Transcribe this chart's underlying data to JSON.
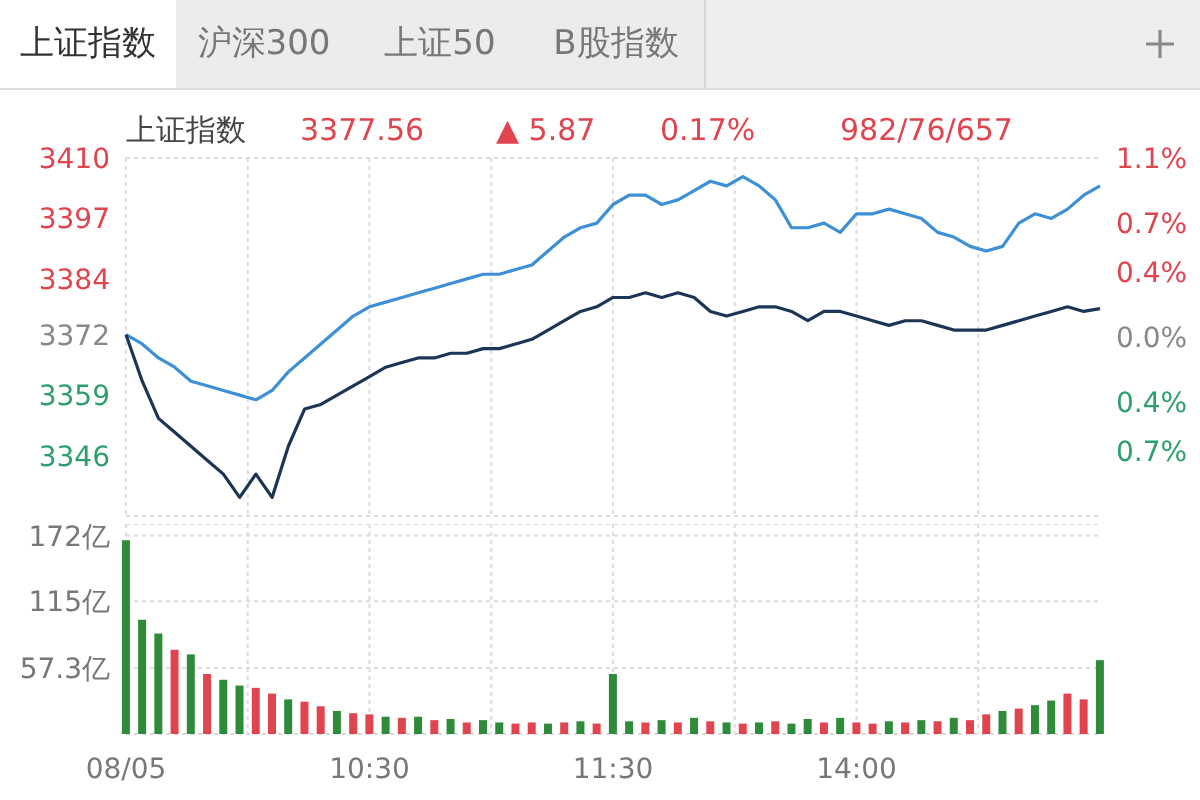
{
  "chart_data": [
    {
      "type": "line",
      "title": "上证指数",
      "annotations": [
        "沪深300",
        "上证50",
        "B股指数",
        "3377.56",
        "▲ 5.87",
        "0.17%",
        "982/76/657"
      ],
      "categories": [
        null,
        null,
        null,
        null,
        null,
        null,
        null,
        null,
        null,
        null,
        null,
        null,
        null,
        null,
        null,
        null,
        null,
        null,
        null,
        null,
        null,
        null,
        null,
        null,
        null,
        null,
        null,
        null,
        null,
        null,
        null,
        null,
        null,
        null,
        null,
        null,
        null,
        null,
        null,
        null,
        null,
        null,
        null,
        null,
        null,
        null,
        null,
        null,
        null,
        null,
        null,
        null,
        null,
        null,
        null,
        null,
        null,
        null,
        null,
        null,
        null
      ],
      "ylim": [
        3333,
        3410
      ],
      "yticks": [
        3346,
        3359,
        3372,
        3384,
        3397,
        3410
      ],
      "y2lim": [
        -1.1,
        1.1
      ],
      "y2ticks": [
        {
          "value": -0.7,
          "label": "0.7%"
        },
        {
          "value": -0.4,
          "label": "0.4%"
        },
        {
          "value": 0,
          "label": "0.0%"
        },
        {
          "value": 0.4,
          "label": "0.4%"
        },
        {
          "value": 0.7,
          "label": "0.7%"
        },
        {
          "value": 1.1,
          "label": "1.1%"
        }
      ],
      "tick_labels": "y",
      "grid": true,
      "series": [
        {
          "color": "#3d8fd6",
          "values": [
            3372,
            3370,
            3367,
            3365,
            3362,
            3361,
            3360,
            3359,
            3358,
            3360,
            3364,
            3367,
            3370,
            3373,
            3376,
            3378,
            3379,
            3380,
            3381,
            3382,
            3383,
            3384,
            3385,
            3385,
            3386,
            3387,
            3390,
            3393,
            3395,
            3396,
            3400,
            3402,
            3402,
            3400,
            3401,
            3403,
            3405,
            3404,
            3406,
            3404,
            3401,
            3395,
            3395,
            3396,
            3394,
            3398,
            3398,
            3399,
            3398,
            3397,
            3394,
            3393,
            3391,
            3390,
            3391,
            3396,
            3398,
            3397,
            3399,
            3402,
            3404
          ]
        },
        {
          "color": "#1c3557",
          "values": [
            3372,
            3362,
            3354,
            3351,
            3348,
            3345,
            3342,
            3337,
            3342,
            3337,
            3348,
            3356,
            3357,
            3359,
            3361,
            3363,
            3365,
            3366,
            3367,
            3367,
            3368,
            3368,
            3369,
            3369,
            3370,
            3371,
            3373,
            3375,
            3377,
            3378,
            3380,
            3380,
            3381,
            3380,
            3381,
            3380,
            3377,
            3376,
            3377,
            3378,
            3378,
            3377,
            3375,
            3377,
            3377,
            3376,
            3375,
            3374,
            3375,
            3375,
            3374,
            3373,
            3373,
            3373,
            3374,
            3375,
            3376,
            3377,
            3378,
            3377,
            3377.6
          ]
        }
      ]
    },
    {
      "type": "bar",
      "categories": [
        "08/05",
        null,
        null,
        null,
        null,
        null,
        null,
        null,
        null,
        null,
        null,
        null,
        null,
        null,
        null,
        "10:30",
        null,
        null,
        null,
        null,
        null,
        null,
        null,
        null,
        null,
        null,
        null,
        null,
        null,
        null,
        "11:30",
        null,
        null,
        null,
        null,
        null,
        null,
        null,
        null,
        null,
        null,
        null,
        null,
        null,
        null,
        "14:00",
        null,
        null,
        null,
        null,
        null,
        null,
        null,
        null,
        null,
        null,
        null,
        null,
        null,
        null,
        null
      ],
      "ylim": [
        0,
        182
      ],
      "yticks": [
        {
          "value": 57.3,
          "label": "57.3亿"
        },
        {
          "value": 115,
          "label": "115亿"
        },
        {
          "value": 172,
          "label": "172亿"
        }
      ],
      "grid": true,
      "values": [
        168,
        99,
        87,
        73,
        69,
        52,
        47,
        42,
        40,
        35,
        30,
        28,
        24,
        20,
        18,
        17,
        15,
        14,
        15,
        12,
        13,
        10,
        12,
        10,
        9,
        10,
        9,
        10,
        11,
        9,
        52,
        11,
        10,
        12,
        10,
        14,
        11,
        10,
        9,
        10,
        11,
        9,
        13,
        10,
        14,
        10,
        9,
        11,
        10,
        12,
        11,
        14,
        12,
        17,
        20,
        22,
        25,
        29,
        35,
        30,
        64
      ],
      "colors": [
        "#2e8b3a",
        "#2e8b3a",
        "#2e8b3a",
        "#e0454f",
        "#2e8b3a",
        "#e0454f",
        "#2e8b3a",
        "#2e8b3a",
        "#e0454f",
        "#e0454f",
        "#2e8b3a",
        "#e0454f",
        "#e0454f",
        "#2e8b3a",
        "#e0454f",
        "#e0454f",
        "#2e8b3a",
        "#e0454f",
        "#2e8b3a",
        "#e0454f",
        "#2e8b3a",
        "#e0454f",
        "#2e8b3a",
        "#2e8b3a",
        "#e0454f",
        "#e0454f",
        "#2e8b3a",
        "#e0454f",
        "#2e8b3a",
        "#e0454f",
        "#2e8b3a",
        "#2e8b3a",
        "#e0454f",
        "#2e8b3a",
        "#e0454f",
        "#2e8b3a",
        "#e0454f",
        "#2e8b3a",
        "#e0454f",
        "#2e8b3a",
        "#e0454f",
        "#2e8b3a",
        "#2e8b3a",
        "#e0454f",
        "#2e8b3a",
        "#e0454f",
        "#e0454f",
        "#2e8b3a",
        "#e0454f",
        "#2e8b3a",
        "#e0454f",
        "#2e8b3a",
        "#e0454f",
        "#e0454f",
        "#2e8b3a",
        "#e0454f",
        "#2e8b3a",
        "#2e8b3a",
        "#e0454f",
        "#e0454f",
        "#2e8b3a"
      ]
    }
  ]
}
